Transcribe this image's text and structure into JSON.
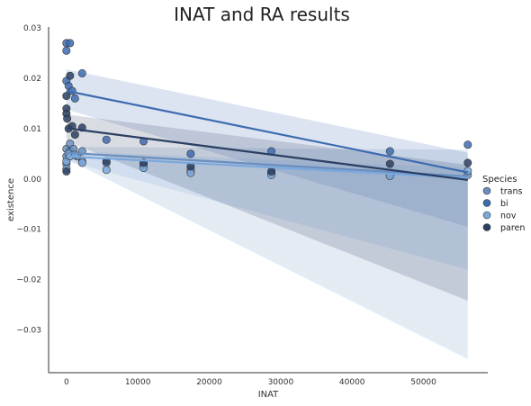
{
  "chart_data": {
    "type": "scatter",
    "title": "INAT and RA results",
    "xlabel": "INAT",
    "ylabel": "existence",
    "xlim": [
      -2500,
      59000
    ],
    "ylim": [
      -0.0385,
      0.0302
    ],
    "xticks": [
      0,
      10000,
      20000,
      30000,
      40000,
      50000
    ],
    "xtick_labels": [
      "0",
      "10000",
      "20000",
      "30000",
      "40000",
      "50000"
    ],
    "yticks": [
      0.03,
      0.02,
      0.01,
      0.0,
      -0.01,
      -0.02,
      -0.03
    ],
    "ytick_labels": [
      "0.03",
      "0.02",
      "0.01",
      "0.00",
      "−0.01",
      "−0.02",
      "−0.03"
    ],
    "grid": false,
    "legend": {
      "title": "Species",
      "placement": "right"
    },
    "series": [
      {
        "name": "trans",
        "color": "#6a8ebf",
        "points": [
          [
            0,
            0.0045
          ],
          [
            0,
            0.006
          ],
          [
            0,
            0.003
          ],
          [
            500,
            0.0055
          ],
          [
            500,
            0.007
          ],
          [
            1000,
            0.006
          ],
          [
            1500,
            0.0045
          ],
          [
            2200,
            0.0055
          ],
          [
            2200,
            0.0035
          ],
          [
            5600,
            0.0032
          ],
          [
            10800,
            0.0028
          ],
          [
            17400,
            0.0018
          ],
          [
            28700,
            0.0012
          ],
          [
            45300,
            0.0008
          ],
          [
            56200,
            0.0008
          ]
        ],
        "fit": {
          "x": [
            0,
            56200
          ],
          "y": [
            0.0052,
            0.0005
          ]
        },
        "band": {
          "upper_start": 0.0064,
          "upper_end": 0.0058,
          "lower_start": 0.004,
          "lower_end": -0.0358
        }
      },
      {
        "name": "bi",
        "color": "#3d6bb0",
        "points": [
          [
            0,
            0.0195
          ],
          [
            0,
            0.027
          ],
          [
            0,
            0.0255
          ],
          [
            300,
            0.0185
          ],
          [
            500,
            0.027
          ],
          [
            800,
            0.0175
          ],
          [
            1200,
            0.016
          ],
          [
            2200,
            0.021
          ],
          [
            5600,
            0.0078
          ],
          [
            10800,
            0.0075
          ],
          [
            17400,
            0.005
          ],
          [
            28700,
            0.0055
          ],
          [
            45300,
            0.0055
          ],
          [
            56200,
            0.0068
          ]
        ],
        "fit": {
          "x": [
            0,
            56200
          ],
          "y": [
            0.0175,
            0.0013
          ]
        },
        "band": {
          "upper_start": 0.0218,
          "upper_end": 0.0052,
          "lower_start": 0.0138,
          "lower_end": -0.0095
        }
      },
      {
        "name": "nov",
        "color": "#7aa8dc",
        "points": [
          [
            0,
            0.002
          ],
          [
            0,
            0.0035
          ],
          [
            300,
            0.005
          ],
          [
            500,
            0.0045
          ],
          [
            1200,
            0.0048
          ],
          [
            2200,
            0.0032
          ],
          [
            5600,
            0.0018
          ],
          [
            10800,
            0.0022
          ],
          [
            17400,
            0.0012
          ],
          [
            28700,
            0.0008
          ],
          [
            45300,
            0.0006
          ],
          [
            56200,
            0.0016
          ]
        ],
        "fit": {
          "x": [
            0,
            56200
          ],
          "y": [
            0.0045,
            0.0002
          ]
        },
        "band": {
          "upper_start": 0.0055,
          "upper_end": 0.0022,
          "lower_start": 0.0036,
          "lower_end": -0.018
        }
      },
      {
        "name": "paren",
        "color": "#2b3f63",
        "points": [
          [
            0,
            0.0015
          ],
          [
            0,
            0.0165
          ],
          [
            0,
            0.014
          ],
          [
            0,
            0.013
          ],
          [
            100,
            0.012
          ],
          [
            300,
            0.01
          ],
          [
            500,
            0.0205
          ],
          [
            800,
            0.0105
          ],
          [
            1200,
            0.0088
          ],
          [
            2200,
            0.0102
          ],
          [
            5600,
            0.0035
          ],
          [
            10800,
            0.0032
          ],
          [
            17400,
            0.0025
          ],
          [
            28700,
            0.0015
          ],
          [
            45300,
            0.003
          ],
          [
            56200,
            0.0032
          ]
        ],
        "fit": {
          "x": [
            0,
            56200
          ],
          "y": [
            0.0101,
            -0.0002
          ]
        },
        "band": {
          "upper_start": 0.0128,
          "upper_end": 0.0028,
          "lower_start": 0.0075,
          "lower_end": -0.0242
        }
      }
    ]
  }
}
